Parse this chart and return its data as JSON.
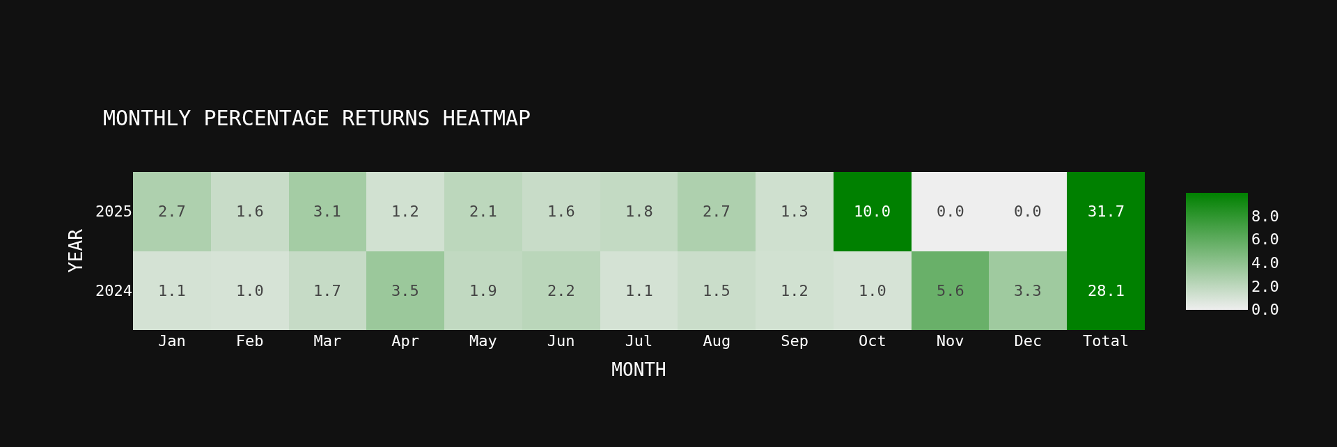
{
  "chart_data": {
    "type": "heatmap",
    "title": "MONTHLY PERCENTAGE RETURNS HEATMAP",
    "xlabel": "MONTH",
    "ylabel": "YEAR",
    "categories": [
      "Jan",
      "Feb",
      "Mar",
      "Apr",
      "May",
      "Jun",
      "Jul",
      "Aug",
      "Sep",
      "Oct",
      "Nov",
      "Dec",
      "Total"
    ],
    "y_categories": [
      "2025",
      "2024"
    ],
    "cells": [
      [
        2.7,
        1.6,
        3.1,
        1.2,
        2.1,
        1.6,
        1.8,
        2.7,
        1.3,
        10.0,
        0.0,
        0.0,
        31.7
      ],
      [
        1.1,
        1.0,
        1.7,
        3.5,
        1.9,
        2.2,
        1.1,
        1.5,
        1.2,
        1.0,
        5.6,
        3.3,
        28.1
      ]
    ],
    "clim": [
      0,
      10
    ],
    "cticks": [
      {
        "value": 0,
        "label": "0.0"
      },
      {
        "value": 2,
        "label": "2.0"
      },
      {
        "value": 4,
        "label": "4.0"
      },
      {
        "value": 6,
        "label": "6.0"
      },
      {
        "value": 8,
        "label": "8.0"
      }
    ],
    "cell_labels": [
      [
        "2.7",
        "1.6",
        "3.1",
        "1.2",
        "2.1",
        "1.6",
        "1.8",
        "2.7",
        "1.3",
        "10.0",
        "0.0",
        "0.0",
        "31.7"
      ],
      [
        "1.1",
        "1.0",
        "1.7",
        "3.5",
        "1.9",
        "2.2",
        "1.1",
        "1.5",
        "1.2",
        "1.0",
        "5.6",
        "3.3",
        "28.1"
      ]
    ]
  }
}
